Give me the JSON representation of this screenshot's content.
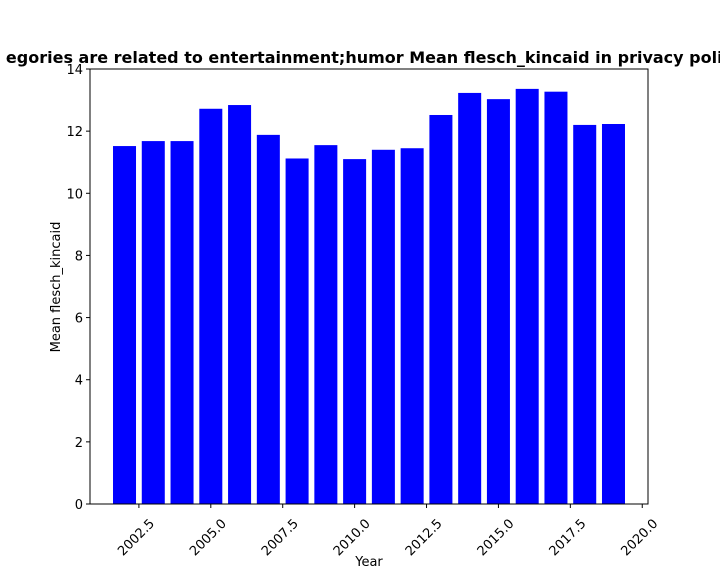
{
  "chart_data": {
    "type": "bar",
    "title": "egories are related to entertainment;humor Mean flesch_kincaid in privacy polic",
    "xlabel": "Year",
    "ylabel": "Mean flesch_kincaid",
    "x": [
      2002,
      2003,
      2004,
      2005,
      2006,
      2007,
      2008,
      2009,
      2010,
      2011,
      2012,
      2013,
      2014,
      2015,
      2016,
      2017,
      2018,
      2019
    ],
    "values": [
      11.52,
      11.68,
      11.68,
      12.72,
      12.84,
      11.88,
      11.12,
      11.55,
      11.1,
      11.4,
      11.45,
      12.52,
      13.23,
      13.03,
      13.36,
      13.27,
      12.2,
      12.23
    ],
    "xlim": [
      2000.8,
      2020.2
    ],
    "ylim": [
      0,
      14
    ],
    "xticks": [
      "2002.5",
      "2005.0",
      "2007.5",
      "2010.0",
      "2012.5",
      "2015.0",
      "2017.5",
      "2020.0"
    ],
    "yticks": [
      "0",
      "2",
      "4",
      "6",
      "8",
      "10",
      "12",
      "14"
    ],
    "bar_color": "#0000ff",
    "grid": false,
    "legend": "none"
  }
}
